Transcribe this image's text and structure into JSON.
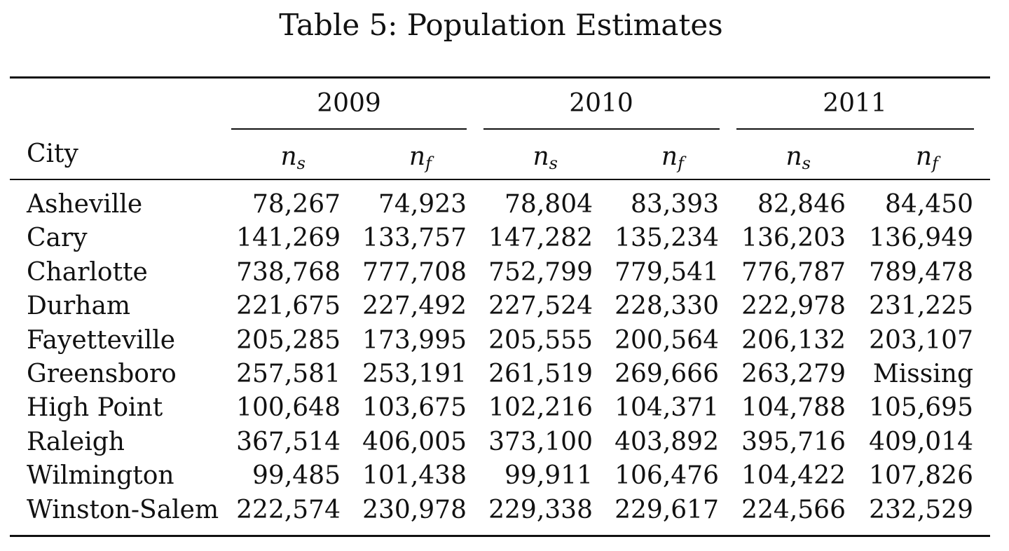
{
  "caption": "Table 5: Population Estimates",
  "header": {
    "city_label": "City",
    "years": [
      "2009",
      "2010",
      "2011"
    ],
    "vars": [
      {
        "base": "n",
        "sub": "s"
      },
      {
        "base": "n",
        "sub": "f"
      },
      {
        "base": "n",
        "sub": "s"
      },
      {
        "base": "n",
        "sub": "f"
      },
      {
        "base": "n",
        "sub": "s"
      },
      {
        "base": "n",
        "sub": "f"
      }
    ]
  },
  "rows": [
    {
      "city": "Asheville",
      "values": [
        "78,267",
        "74,923",
        "78,804",
        "83,393",
        "82,846",
        "84,450"
      ]
    },
    {
      "city": "Cary",
      "values": [
        "141,269",
        "133,757",
        "147,282",
        "135,234",
        "136,203",
        "136,949"
      ]
    },
    {
      "city": "Charlotte",
      "values": [
        "738,768",
        "777,708",
        "752,799",
        "779,541",
        "776,787",
        "789,478"
      ]
    },
    {
      "city": "Durham",
      "values": [
        "221,675",
        "227,492",
        "227,524",
        "228,330",
        "222,978",
        "231,225"
      ]
    },
    {
      "city": "Fayetteville",
      "values": [
        "205,285",
        "173,995",
        "205,555",
        "200,564",
        "206,132",
        "203,107"
      ]
    },
    {
      "city": "Greensboro",
      "values": [
        "257,581",
        "253,191",
        "261,519",
        "269,666",
        "263,279",
        "Missing"
      ]
    },
    {
      "city": "High Point",
      "values": [
        "100,648",
        "103,675",
        "102,216",
        "104,371",
        "104,788",
        "105,695"
      ]
    },
    {
      "city": "Raleigh",
      "values": [
        "367,514",
        "406,005",
        "373,100",
        "403,892",
        "395,716",
        "409,014"
      ]
    },
    {
      "city": "Wilmington",
      "values": [
        "99,485",
        "101,438",
        "99,911",
        "106,476",
        "104,422",
        "107,826"
      ]
    },
    {
      "city": "Winston-Salem",
      "values": [
        "222,574",
        "230,978",
        "229,338",
        "229,617",
        "224,566",
        "232,529"
      ]
    }
  ]
}
